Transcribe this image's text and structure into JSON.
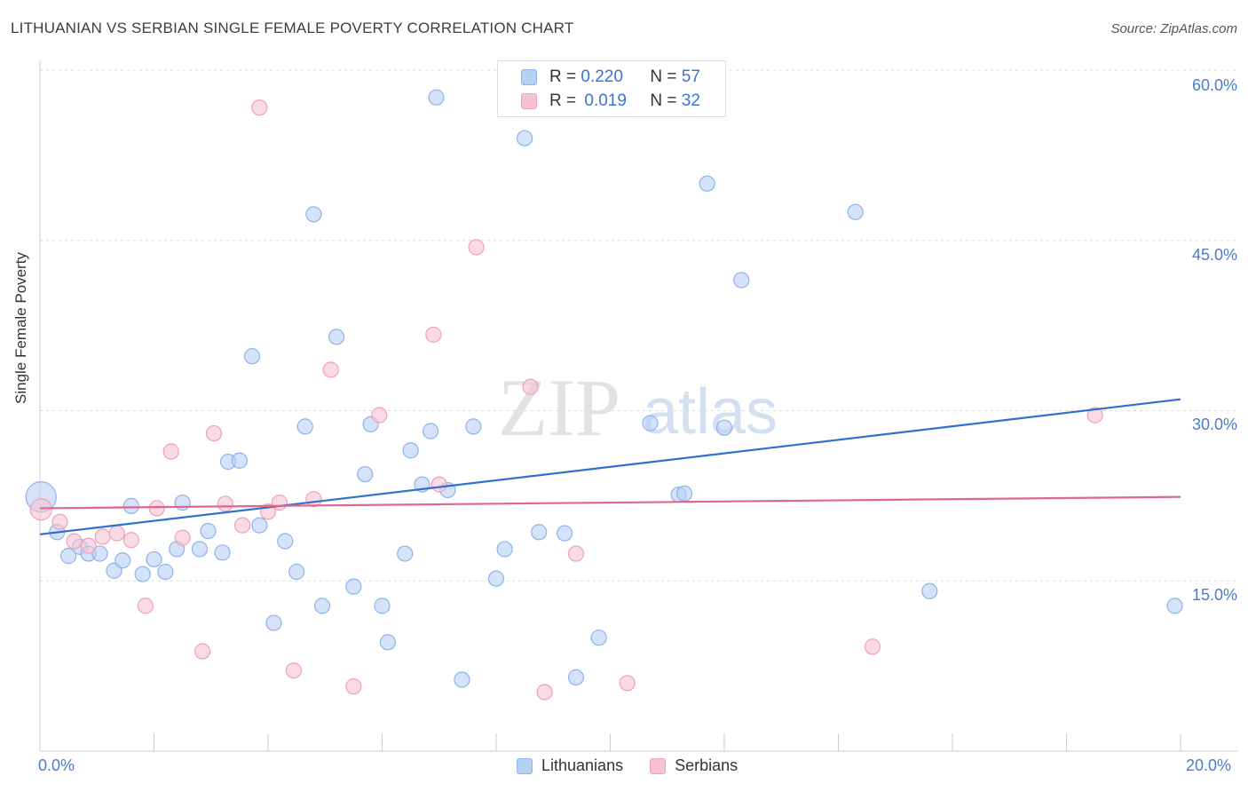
{
  "title": "LITHUANIAN VS SERBIAN SINGLE FEMALE POVERTY CORRELATION CHART",
  "source": "Source: ZipAtlas.com",
  "watermark": {
    "zip": "ZIP",
    "atlas": "atlas"
  },
  "legend": {
    "r_label": "R =",
    "n_label": "N =",
    "lithuanians": {
      "r": "0.220",
      "n": "57"
    },
    "serbians": {
      "r": "0.019",
      "n": "32"
    }
  },
  "colors": {
    "lith_fill": "#b7d1f5",
    "lith_stroke": "#8db3e8",
    "lith_line": "#2f6fd0",
    "serb_fill": "#f7c3d3",
    "serb_stroke": "#eea0b8",
    "serb_line": "#e06590",
    "tick": "#4a7cc7",
    "grid": "#d9d9d9"
  },
  "chart_data": {
    "type": "scatter",
    "title": "LITHUANIAN VS SERBIAN SINGLE FEMALE POVERTY CORRELATION CHART",
    "xlabel": "",
    "ylabel": "Single Female Poverty",
    "xlim": [
      0,
      20
    ],
    "ylim": [
      0,
      60
    ],
    "x_tick_labels": [
      "0.0%",
      "20.0%"
    ],
    "y_ticks": [
      15,
      30,
      45,
      60
    ],
    "y_tick_labels": [
      "15.0%",
      "30.0%",
      "45.0%",
      "60.0%"
    ],
    "series": [
      {
        "name": "Lithuanians",
        "points": [
          [
            0.02,
            22.4
          ],
          [
            0.3,
            19.3
          ],
          [
            0.5,
            17.2
          ],
          [
            0.7,
            18.0
          ],
          [
            0.85,
            17.4
          ],
          [
            1.05,
            17.4
          ],
          [
            1.3,
            15.9
          ],
          [
            1.45,
            16.8
          ],
          [
            1.6,
            21.6
          ],
          [
            1.8,
            15.6
          ],
          [
            2.0,
            16.9
          ],
          [
            2.2,
            15.8
          ],
          [
            2.4,
            17.8
          ],
          [
            2.5,
            21.9
          ],
          [
            2.8,
            17.8
          ],
          [
            2.95,
            19.4
          ],
          [
            3.2,
            17.5
          ],
          [
            3.3,
            25.5
          ],
          [
            3.5,
            25.6
          ],
          [
            3.72,
            34.8
          ],
          [
            3.85,
            19.9
          ],
          [
            4.1,
            11.3
          ],
          [
            4.3,
            18.5
          ],
          [
            4.5,
            15.8
          ],
          [
            4.65,
            28.6
          ],
          [
            4.8,
            47.3
          ],
          [
            4.95,
            12.8
          ],
          [
            5.2,
            36.5
          ],
          [
            5.5,
            14.5
          ],
          [
            5.7,
            24.4
          ],
          [
            5.8,
            28.8
          ],
          [
            6.0,
            12.8
          ],
          [
            6.1,
            9.6
          ],
          [
            6.4,
            17.4
          ],
          [
            6.5,
            26.5
          ],
          [
            6.7,
            23.5
          ],
          [
            6.85,
            28.2
          ],
          [
            6.95,
            57.6
          ],
          [
            7.15,
            23.0
          ],
          [
            7.4,
            6.3
          ],
          [
            7.6,
            28.6
          ],
          [
            8.0,
            15.2
          ],
          [
            8.15,
            17.8
          ],
          [
            8.5,
            54.0
          ],
          [
            8.75,
            19.3
          ],
          [
            9.2,
            19.2
          ],
          [
            9.4,
            6.5
          ],
          [
            9.8,
            10.0
          ],
          [
            10.7,
            28.9
          ],
          [
            11.2,
            22.6
          ],
          [
            11.3,
            22.7
          ],
          [
            11.7,
            50.0
          ],
          [
            12.0,
            28.5
          ],
          [
            12.3,
            41.5
          ],
          [
            14.3,
            47.5
          ],
          [
            15.6,
            14.1
          ],
          [
            19.9,
            12.8
          ]
        ]
      },
      {
        "name": "Serbians",
        "points": [
          [
            0.02,
            21.3
          ],
          [
            0.35,
            20.2
          ],
          [
            0.6,
            18.5
          ],
          [
            0.85,
            18.1
          ],
          [
            1.1,
            18.9
          ],
          [
            1.35,
            19.2
          ],
          [
            1.6,
            18.6
          ],
          [
            1.85,
            12.8
          ],
          [
            2.05,
            21.4
          ],
          [
            2.3,
            26.4
          ],
          [
            2.5,
            18.8
          ],
          [
            2.85,
            8.8
          ],
          [
            3.05,
            28.0
          ],
          [
            3.25,
            21.8
          ],
          [
            3.55,
            19.9
          ],
          [
            3.85,
            56.7
          ],
          [
            4.0,
            21.1
          ],
          [
            4.2,
            21.9
          ],
          [
            4.45,
            7.1
          ],
          [
            4.8,
            22.2
          ],
          [
            5.1,
            33.6
          ],
          [
            5.5,
            5.7
          ],
          [
            5.95,
            29.6
          ],
          [
            6.9,
            36.7
          ],
          [
            7.0,
            23.5
          ],
          [
            7.65,
            44.4
          ],
          [
            8.6,
            32.1
          ],
          [
            8.85,
            5.2
          ],
          [
            9.4,
            17.4
          ],
          [
            10.3,
            6.0
          ],
          [
            14.6,
            9.2
          ],
          [
            18.5,
            29.6
          ]
        ]
      }
    ],
    "trend_lines": [
      {
        "name": "Lithuanians",
        "start": [
          0,
          19.1
        ],
        "end": [
          20,
          31.0
        ]
      },
      {
        "name": "Serbians",
        "start": [
          0,
          21.4
        ],
        "end": [
          20,
          22.4
        ]
      }
    ],
    "legend_position": "top-center"
  },
  "bottom_legend": {
    "lithuanians": "Lithuanians",
    "serbians": "Serbians"
  }
}
